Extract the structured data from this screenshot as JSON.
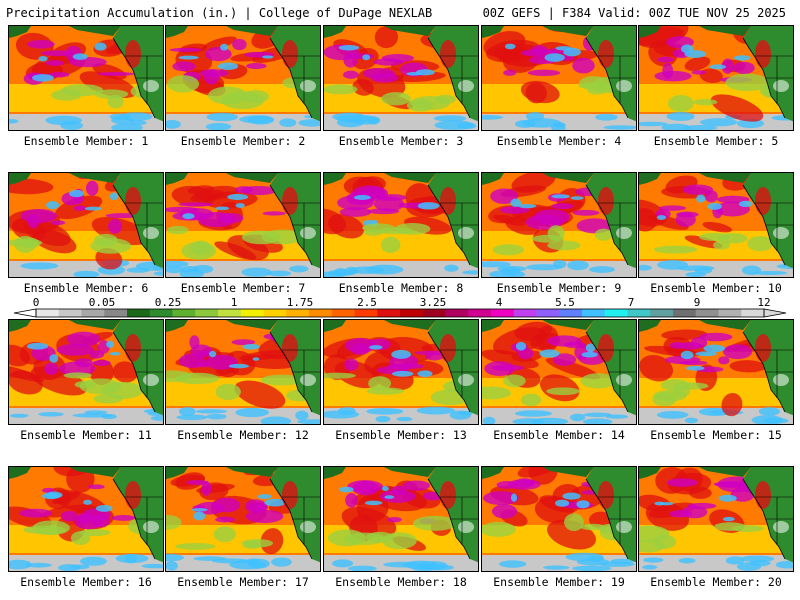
{
  "header": {
    "left": "Precipitation Accumulation (in.) | College of DuPage NEXLAB",
    "right": "00Z GEFS | F384 Valid: 00Z TUE NOV 25 2025"
  },
  "members": [
    "Ensemble Member: 1",
    "Ensemble Member: 2",
    "Ensemble Member: 3",
    "Ensemble Member: 4",
    "Ensemble Member: 5",
    "Ensemble Member: 6",
    "Ensemble Member: 7",
    "Ensemble Member: 8",
    "Ensemble Member: 9",
    "Ensemble Member: 10",
    "Ensemble Member: 11",
    "Ensemble Member: 12",
    "Ensemble Member: 13",
    "Ensemble Member: 14",
    "Ensemble Member: 15",
    "Ensemble Member: 16",
    "Ensemble Member: 17",
    "Ensemble Member: 18",
    "Ensemble Member: 19",
    "Ensemble Member: 20"
  ],
  "colorbar": {
    "labels": [
      "0",
      "0.05",
      "0.25",
      "1",
      "1.75",
      "2.5",
      "3.25",
      "4",
      "5.5",
      "7",
      "9",
      "12"
    ],
    "colors": [
      "#e8e8e8",
      "#c8c8c8",
      "#a8a8a8",
      "#888888",
      "#1a6a1a",
      "#2e8b2e",
      "#5fb030",
      "#8cc83c",
      "#c0e040",
      "#f0f000",
      "#ffd000",
      "#ffb000",
      "#ff8c00",
      "#ff6400",
      "#ff3c00",
      "#e01010",
      "#c00000",
      "#a00020",
      "#b00060",
      "#d00090",
      "#f000c0",
      "#c040f0",
      "#9060ff",
      "#6080ff",
      "#40c0ff",
      "#20f0f0",
      "#40c8c8",
      "#60a0a0",
      "#707070",
      "#909090",
      "#b0b0b0",
      "#d8d8d8"
    ]
  },
  "map_colors": {
    "ocean_base": "#ff7a00",
    "land": "#2e8b2e",
    "land_dark": "#1f6e1f",
    "rain_mid": "#ffd400",
    "rain_high": "#e01010",
    "rain_max": "#d000c0",
    "extreme": "#40c0ff",
    "tropics": "#c8c8c8"
  }
}
